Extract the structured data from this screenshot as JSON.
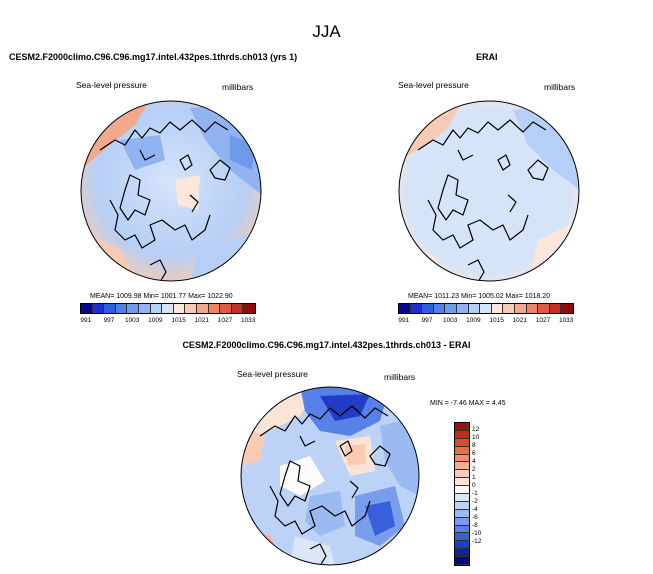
{
  "figure": {
    "title": "JJA",
    "colors": {
      "coast": "#000000",
      "rim": "#000000"
    }
  },
  "panels": [
    {
      "id": "model",
      "header": "CESM2.F2000climo.C96.C96.mg17.intel.432pes.1thrds.ch013 (yrs 1)",
      "variable": "Sea-level pressure",
      "units": "millibars",
      "stats": "MEAN= 1009.98   Min= 1001.77   Max= 1022.90"
    },
    {
      "id": "obs",
      "header": "ERAI",
      "variable": "Sea-level pressure",
      "units": "millibars",
      "stats": "MEAN= 1011.23   Min= 1005.02   Max= 1018.20"
    },
    {
      "id": "diff",
      "header": "CESM2.F2000climo.C96.C96.mg17.intel.432pes.1thrds.ch013 - ERAI",
      "variable": "Sea-level pressure",
      "units": "millibars",
      "stats": "MIN = -7.46 MAX =  4.45"
    }
  ],
  "colorbar_abs": {
    "colors": [
      "#08088f",
      "#1c2fd2",
      "#2f5ddb",
      "#4f80e6",
      "#6f99eb",
      "#92b3f1",
      "#b6cff6",
      "#d5e4f9",
      "#fbe7dc",
      "#f7cbb3",
      "#f2a98b",
      "#e98466",
      "#dd5a43",
      "#c22e25",
      "#8e0c0c"
    ],
    "labels": [
      "991",
      "997",
      "1003",
      "1009",
      "1015",
      "1021",
      "1027",
      "1033"
    ]
  },
  "colorbar_diff": {
    "colors": [
      "#9b1010",
      "#c22b22",
      "#dc4a35",
      "#ea6b4d",
      "#f28d6c",
      "#f6ad8f",
      "#f9cbb4",
      "#fbe4d6",
      "#fbfbfb",
      "#dbe6f8",
      "#bcd2f6",
      "#9bbaf1",
      "#789ded",
      "#5780e8",
      "#3a5fdc",
      "#233cc6",
      "#14209a",
      "#080c70"
    ],
    "labels": [
      "12",
      "10",
      "8",
      "6",
      "4",
      "2",
      "1",
      "0",
      "-1",
      "-2",
      "-4",
      "-6",
      "-8",
      "-10",
      "-12"
    ]
  }
}
